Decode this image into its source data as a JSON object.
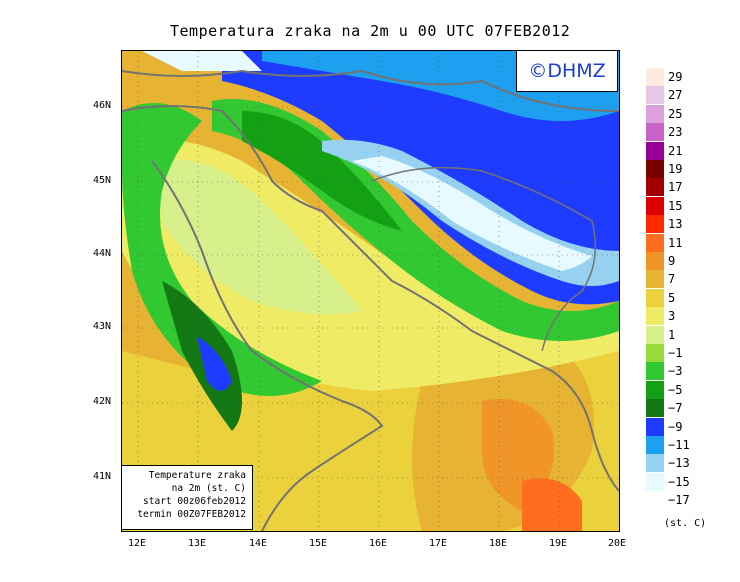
{
  "title": "Temperatura zraka na 2m u 00 UTC 07FEB2012",
  "logo_text": "©DHMZ",
  "info_box": {
    "line1": "Temperature zraka",
    "line2": "na 2m (st. C)",
    "line3": "start 00z06feb2012",
    "line4": "termin 00Z07FEB2012"
  },
  "lat_labels": [
    "46N",
    "45N",
    "44N",
    "43N",
    "42N",
    "41N"
  ],
  "lon_labels": [
    "12E",
    "13E",
    "14E",
    "15E",
    "16E",
    "17E",
    "18E",
    "19E",
    "20E"
  ],
  "legend": {
    "unit": "(st. C)",
    "ticks": [
      "29",
      "27",
      "25",
      "23",
      "21",
      "19",
      "17",
      "15",
      "13",
      "11",
      "9",
      "7",
      "5",
      "3",
      "1",
      "−1",
      "−3",
      "−5",
      "−7",
      "−9",
      "−11",
      "−13",
      "−15",
      "−17"
    ],
    "colors": [
      "#fdebe0",
      "#e6c8e6",
      "#dca0dc",
      "#c864c8",
      "#960096",
      "#780000",
      "#a00000",
      "#dc0000",
      "#ff2800",
      "#ff6e1e",
      "#f09628",
      "#e6b432",
      "#ebd23c",
      "#f0eb64",
      "#d7f08c",
      "#96dc3c",
      "#32c832",
      "#14a014",
      "#147814",
      "#1e3cff",
      "#1ea0f0",
      "#96d2f0",
      "#e6faff",
      "#ffffff"
    ]
  },
  "colors": {
    "sea": "#e1c835",
    "coast": "#737373"
  }
}
